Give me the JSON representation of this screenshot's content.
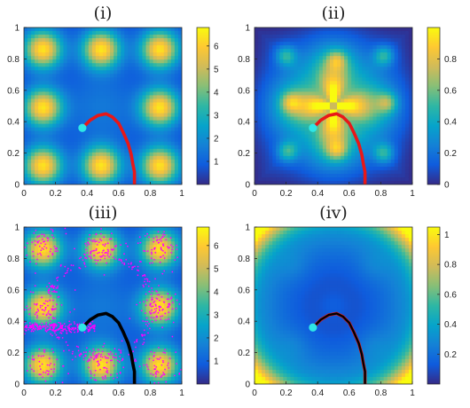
{
  "chart_data": [
    {
      "type": "heatmap",
      "title": "(i)",
      "xlim": [
        0,
        1
      ],
      "ylim": [
        0,
        1
      ],
      "xticks": [
        "0",
        "0.2",
        "0.4",
        "0.6",
        "0.8",
        "1"
      ],
      "yticks": [
        "0",
        "0.2",
        "0.4",
        "0.6",
        "0.8",
        "1"
      ],
      "colorbar": {
        "range": [
          0,
          6.8
        ],
        "ticks": [
          "1",
          "2",
          "3",
          "4",
          "5",
          "6"
        ]
      },
      "field": "peaks",
      "start_point": {
        "x": 0.37,
        "y": 0.36,
        "color": "#2ee6e6"
      },
      "path": {
        "color": "#e81818",
        "x": [
          0.37,
          0.42,
          0.47,
          0.52,
          0.56,
          0.6,
          0.63,
          0.66,
          0.68,
          0.69,
          0.7,
          0.7,
          0.7
        ],
        "y": [
          0.36,
          0.41,
          0.44,
          0.45,
          0.43,
          0.39,
          0.33,
          0.26,
          0.19,
          0.13,
          0.08,
          0.03,
          0.0
        ]
      }
    },
    {
      "type": "heatmap",
      "title": "(ii)",
      "xlim": [
        0,
        1
      ],
      "ylim": [
        0,
        1
      ],
      "xticks": [
        "0",
        "0.2",
        "0.4",
        "0.6",
        "0.8",
        "1"
      ],
      "yticks": [
        "0",
        "0.2",
        "0.4",
        "0.6",
        "0.8",
        "1"
      ],
      "colorbar": {
        "range": [
          0,
          1
        ],
        "ticks": [
          "0",
          "0.2",
          "0.4",
          "0.6",
          "0.8"
        ]
      },
      "field": "star",
      "start_point": {
        "x": 0.37,
        "y": 0.36,
        "color": "#2ee6e6"
      },
      "path": {
        "color": "#e81818",
        "x": [
          0.37,
          0.42,
          0.47,
          0.52,
          0.56,
          0.6,
          0.63,
          0.66,
          0.68,
          0.69,
          0.7,
          0.7,
          0.7
        ],
        "y": [
          0.36,
          0.41,
          0.44,
          0.45,
          0.43,
          0.39,
          0.33,
          0.26,
          0.19,
          0.13,
          0.08,
          0.03,
          0.0
        ]
      }
    },
    {
      "type": "heatmap",
      "title": "(iii)",
      "xlim": [
        0,
        1
      ],
      "ylim": [
        0,
        1
      ],
      "xticks": [
        "0",
        "0.2",
        "0.4",
        "0.6",
        "0.8",
        "1"
      ],
      "yticks": [
        "0",
        "0.2",
        "0.4",
        "0.6",
        "0.8",
        "1"
      ],
      "colorbar": {
        "range": [
          0,
          6.8
        ],
        "ticks": [
          "1",
          "2",
          "3",
          "4",
          "5",
          "6"
        ]
      },
      "field": "peaks",
      "samples_color": "#ff00ff",
      "start_point": {
        "x": 0.37,
        "y": 0.36,
        "color": "#2ee6e6"
      },
      "path": {
        "color": "#000000",
        "x": [
          0.37,
          0.42,
          0.47,
          0.52,
          0.56,
          0.6,
          0.63,
          0.66,
          0.68,
          0.69,
          0.7,
          0.7,
          0.7
        ],
        "y": [
          0.36,
          0.41,
          0.44,
          0.45,
          0.43,
          0.39,
          0.33,
          0.26,
          0.19,
          0.13,
          0.08,
          0.03,
          0.0
        ]
      }
    },
    {
      "type": "heatmap",
      "title": "(iv)",
      "xlim": [
        0,
        1
      ],
      "ylim": [
        0,
        1
      ],
      "xticks": [
        "0",
        "0.2",
        "0.4",
        "0.6",
        "0.8",
        "1"
      ],
      "yticks": [
        "0",
        "0.2",
        "0.4",
        "0.6",
        "0.8",
        "1"
      ],
      "colorbar": {
        "range": [
          0,
          1.05
        ],
        "ticks": [
          "0.2",
          "0.4",
          "0.6",
          "0.8",
          "1"
        ]
      },
      "field": "bowl",
      "start_point": {
        "x": 0.37,
        "y": 0.36,
        "color": "#2ee6e6"
      },
      "path": {
        "color": "#e81818",
        "x": [
          0.37,
          0.42,
          0.47,
          0.52,
          0.56,
          0.6,
          0.63,
          0.66,
          0.68,
          0.69,
          0.7,
          0.7,
          0.7
        ],
        "y": [
          0.36,
          0.41,
          0.44,
          0.45,
          0.43,
          0.39,
          0.33,
          0.26,
          0.19,
          0.13,
          0.08,
          0.03,
          0.0
        ]
      },
      "path_overlay": {
        "color": "#000000",
        "x": [
          0.37,
          0.42,
          0.47,
          0.52,
          0.56,
          0.6,
          0.63,
          0.66,
          0.68,
          0.69,
          0.7,
          0.7,
          0.7
        ],
        "y": [
          0.36,
          0.41,
          0.44,
          0.45,
          0.43,
          0.39,
          0.33,
          0.26,
          0.19,
          0.13,
          0.08,
          0.03,
          0.0
        ]
      }
    }
  ]
}
